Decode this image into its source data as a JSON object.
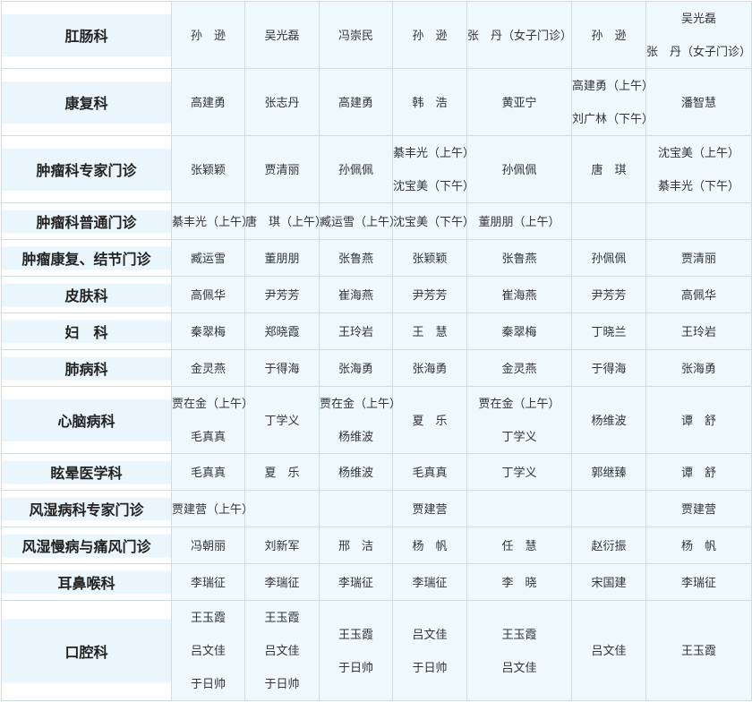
{
  "table": {
    "rows": [
      {
        "department": "肛肠科",
        "cells": [
          [
            "孙　逊"
          ],
          [
            "吴光磊"
          ],
          [
            "冯崇民"
          ],
          [
            "孙　逊"
          ],
          [
            "张　丹（女子门诊）"
          ],
          [
            "孙　逊"
          ],
          [
            "吴光磊",
            "张　丹（女子门诊）"
          ]
        ]
      },
      {
        "department": "康复科",
        "cells": [
          [
            "高建勇"
          ],
          [
            "张志丹"
          ],
          [
            "高建勇"
          ],
          [
            "韩　浩"
          ],
          [
            "黄亚宁"
          ],
          [
            "高建勇（上午）",
            "刘广林（下午）"
          ],
          [
            "潘智慧"
          ]
        ]
      },
      {
        "department": "肿瘤科专家门诊",
        "cells": [
          [
            "张颖颖"
          ],
          [
            "贾清丽"
          ],
          [
            "孙佩佩"
          ],
          [
            "綦丰光（上午）",
            "沈宝美（下午）"
          ],
          [
            "孙佩佩"
          ],
          [
            "唐　琪"
          ],
          [
            "沈宝美（上午）",
            "綦丰光（下午）"
          ]
        ]
      },
      {
        "department": "肿瘤科普通门诊",
        "cells": [
          [
            "綦丰光（上午）"
          ],
          [
            "唐　琪（上午）"
          ],
          [
            "臧运雪（上午）"
          ],
          [
            "沈宝美（下午）"
          ],
          [
            "董朋朋（上午）"
          ],
          [],
          []
        ]
      },
      {
        "department": "肿瘤康复、结节门诊",
        "cells": [
          [
            "臧运雪"
          ],
          [
            "董朋朋"
          ],
          [
            "张鲁燕"
          ],
          [
            "张颖颖"
          ],
          [
            "张鲁燕"
          ],
          [
            "孙佩佩"
          ],
          [
            "贾清丽"
          ]
        ]
      },
      {
        "department": "皮肤科",
        "cells": [
          [
            "高佩华"
          ],
          [
            "尹芳芳"
          ],
          [
            "崔海燕"
          ],
          [
            "尹芳芳"
          ],
          [
            "崔海燕"
          ],
          [
            "尹芳芳"
          ],
          [
            "高佩华"
          ]
        ]
      },
      {
        "department": "妇　科",
        "cells": [
          [
            "秦翠梅"
          ],
          [
            "郑晓霞"
          ],
          [
            "王玲岩"
          ],
          [
            "王　慧"
          ],
          [
            "秦翠梅"
          ],
          [
            "丁晓兰"
          ],
          [
            "王玲岩"
          ]
        ]
      },
      {
        "department": "肺病科",
        "cells": [
          [
            "金灵燕"
          ],
          [
            "于得海"
          ],
          [
            "张海勇"
          ],
          [
            "张海勇"
          ],
          [
            "金灵燕"
          ],
          [
            "于得海"
          ],
          [
            "张海勇"
          ]
        ]
      },
      {
        "department": "心脑病科",
        "cells": [
          [
            "贾在金（上午）",
            "毛真真"
          ],
          [
            "丁学义"
          ],
          [
            "贾在金（上午）",
            "杨维波"
          ],
          [
            "夏　乐"
          ],
          [
            "贾在金（上午）",
            "丁学义"
          ],
          [
            "杨维波"
          ],
          [
            "谭　舒"
          ]
        ]
      },
      {
        "department": "眩晕医学科",
        "cells": [
          [
            "毛真真"
          ],
          [
            "夏　乐"
          ],
          [
            "杨维波"
          ],
          [
            "毛真真"
          ],
          [
            "丁学义"
          ],
          [
            "郭继臻"
          ],
          [
            "谭　舒"
          ]
        ]
      },
      {
        "department": "风湿病科专家门诊",
        "cells": [
          [
            "贾建营（上午）"
          ],
          [],
          [],
          [
            "贾建营"
          ],
          [],
          [],
          [
            "贾建营"
          ]
        ]
      },
      {
        "department": "风湿慢病与痛风门诊",
        "cells": [
          [
            "冯朝丽"
          ],
          [
            "刘新军"
          ],
          [
            "邢　洁"
          ],
          [
            "杨　帆"
          ],
          [
            "任　慧"
          ],
          [
            "赵衍振"
          ],
          [
            "杨　帆"
          ]
        ]
      },
      {
        "department": "耳鼻喉科",
        "cells": [
          [
            "李瑞征"
          ],
          [
            "李瑞征"
          ],
          [
            "李瑞征"
          ],
          [
            "李瑞征"
          ],
          [
            "李　晓"
          ],
          [
            "宋国建"
          ],
          [
            "李瑞征"
          ]
        ]
      },
      {
        "department": "口腔科",
        "cells": [
          [
            "王玉霞",
            "吕文佳",
            "于日帅"
          ],
          [
            "王玉霞",
            "吕文佳",
            "于日帅"
          ],
          [
            "王玉霞",
            "于日帅"
          ],
          [
            "吕文佳",
            "于日帅"
          ],
          [
            "王玉霞",
            "吕文佳"
          ],
          [
            "吕文佳"
          ],
          [
            "王玉霞"
          ]
        ]
      }
    ]
  }
}
